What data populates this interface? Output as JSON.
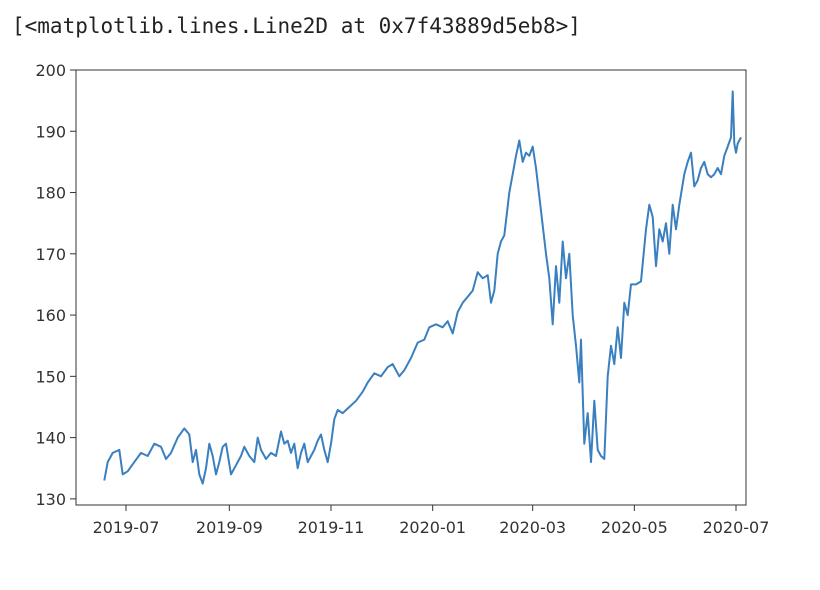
{
  "output_text": "[<matplotlib.lines.Line2D at 0x7f43889d5eb8>]",
  "chart_data": {
    "type": "line",
    "title": "",
    "xlabel": "",
    "ylabel": "",
    "xlim": [
      "2019-06-01",
      "2020-07-07"
    ],
    "ylim": [
      129,
      200
    ],
    "grid": false,
    "legend": "none",
    "line_color": "#3a7fbf",
    "x_ticks": [
      "2019-07-01",
      "2019-09-01",
      "2019-11-01",
      "2020-01-01",
      "2020-03-01",
      "2020-05-01",
      "2020-07-01"
    ],
    "x_tick_labels": [
      "2019-07",
      "2019-09",
      "2019-11",
      "2020-01",
      "2020-03",
      "2020-05",
      "2020-07"
    ],
    "y_ticks": [
      130,
      140,
      150,
      160,
      170,
      180,
      190,
      200
    ],
    "y_tick_labels": [
      "130",
      "140",
      "150",
      "160",
      "170",
      "180",
      "190",
      "200"
    ],
    "series": [
      {
        "points": [
          [
            "2019-06-18",
            133
          ],
          [
            "2019-06-20",
            136
          ],
          [
            "2019-06-23",
            137.5
          ],
          [
            "2019-06-27",
            138
          ],
          [
            "2019-06-29",
            134
          ],
          [
            "2019-07-02",
            134.5
          ],
          [
            "2019-07-06",
            136
          ],
          [
            "2019-07-10",
            137.5
          ],
          [
            "2019-07-14",
            137
          ],
          [
            "2019-07-18",
            139
          ],
          [
            "2019-07-22",
            138.5
          ],
          [
            "2019-07-25",
            136.5
          ],
          [
            "2019-07-28",
            137.5
          ],
          [
            "2019-08-01",
            140
          ],
          [
            "2019-08-05",
            141.5
          ],
          [
            "2019-08-08",
            140.5
          ],
          [
            "2019-08-10",
            136
          ],
          [
            "2019-08-12",
            138
          ],
          [
            "2019-08-14",
            134
          ],
          [
            "2019-08-16",
            132.5
          ],
          [
            "2019-08-18",
            135
          ],
          [
            "2019-08-20",
            139
          ],
          [
            "2019-08-22",
            137
          ],
          [
            "2019-08-24",
            134
          ],
          [
            "2019-08-26",
            136
          ],
          [
            "2019-08-28",
            138.5
          ],
          [
            "2019-08-30",
            139
          ],
          [
            "2019-09-02",
            134
          ],
          [
            "2019-09-05",
            135.5
          ],
          [
            "2019-09-08",
            137
          ],
          [
            "2019-09-10",
            138.5
          ],
          [
            "2019-09-13",
            137
          ],
          [
            "2019-09-16",
            136
          ],
          [
            "2019-09-18",
            140
          ],
          [
            "2019-09-20",
            138
          ],
          [
            "2019-09-23",
            136.5
          ],
          [
            "2019-09-26",
            137.5
          ],
          [
            "2019-09-29",
            137
          ],
          [
            "2019-10-02",
            141
          ],
          [
            "2019-10-04",
            139
          ],
          [
            "2019-10-06",
            139.5
          ],
          [
            "2019-10-08",
            137.5
          ],
          [
            "2019-10-10",
            139
          ],
          [
            "2019-10-12",
            135
          ],
          [
            "2019-10-14",
            137.5
          ],
          [
            "2019-10-16",
            139
          ],
          [
            "2019-10-18",
            136
          ],
          [
            "2019-10-20",
            137
          ],
          [
            "2019-10-22",
            138
          ],
          [
            "2019-10-24",
            139.5
          ],
          [
            "2019-10-26",
            140.5
          ],
          [
            "2019-10-28",
            138
          ],
          [
            "2019-10-30",
            136
          ],
          [
            "2019-11-01",
            139
          ],
          [
            "2019-11-03",
            143
          ],
          [
            "2019-11-05",
            144.5
          ],
          [
            "2019-11-08",
            144
          ],
          [
            "2019-11-12",
            145
          ],
          [
            "2019-11-16",
            146
          ],
          [
            "2019-11-20",
            147.5
          ],
          [
            "2019-11-23",
            149
          ],
          [
            "2019-11-27",
            150.5
          ],
          [
            "2019-12-01",
            150
          ],
          [
            "2019-12-05",
            151.5
          ],
          [
            "2019-12-08",
            152
          ],
          [
            "2019-12-12",
            150
          ],
          [
            "2019-12-15",
            151
          ],
          [
            "2019-12-19",
            153
          ],
          [
            "2019-12-23",
            155.5
          ],
          [
            "2019-12-27",
            156
          ],
          [
            "2019-12-30",
            158
          ],
          [
            "2020-01-03",
            158.5
          ],
          [
            "2020-01-07",
            158
          ],
          [
            "2020-01-10",
            159
          ],
          [
            "2020-01-13",
            157
          ],
          [
            "2020-01-16",
            160.5
          ],
          [
            "2020-01-19",
            162
          ],
          [
            "2020-01-22",
            163
          ],
          [
            "2020-01-25",
            164
          ],
          [
            "2020-01-28",
            167
          ],
          [
            "2020-01-31",
            166
          ],
          [
            "2020-02-03",
            166.5
          ],
          [
            "2020-02-05",
            162
          ],
          [
            "2020-02-07",
            164
          ],
          [
            "2020-02-09",
            170
          ],
          [
            "2020-02-11",
            172
          ],
          [
            "2020-02-13",
            173
          ],
          [
            "2020-02-16",
            180
          ],
          [
            "2020-02-18",
            183
          ],
          [
            "2020-02-20",
            186
          ],
          [
            "2020-02-22",
            188.5
          ],
          [
            "2020-02-24",
            185
          ],
          [
            "2020-02-26",
            186.5
          ],
          [
            "2020-02-28",
            186
          ],
          [
            "2020-03-01",
            187.5
          ],
          [
            "2020-03-03",
            184
          ],
          [
            "2020-03-06",
            177
          ],
          [
            "2020-03-09",
            170
          ],
          [
            "2020-03-11",
            166
          ],
          [
            "2020-03-13",
            158.5
          ],
          [
            "2020-03-15",
            168
          ],
          [
            "2020-03-17",
            162
          ],
          [
            "2020-03-19",
            172
          ],
          [
            "2020-03-21",
            166
          ],
          [
            "2020-03-23",
            170
          ],
          [
            "2020-03-25",
            160
          ],
          [
            "2020-03-27",
            155
          ],
          [
            "2020-03-29",
            149
          ],
          [
            "2020-03-30",
            156
          ],
          [
            "2020-04-01",
            139
          ],
          [
            "2020-04-03",
            144
          ],
          [
            "2020-04-05",
            136
          ],
          [
            "2020-04-07",
            146
          ],
          [
            "2020-04-09",
            138
          ],
          [
            "2020-04-11",
            137
          ],
          [
            "2020-04-13",
            136.5
          ],
          [
            "2020-04-15",
            150
          ],
          [
            "2020-04-17",
            155
          ],
          [
            "2020-04-19",
            152
          ],
          [
            "2020-04-21",
            158
          ],
          [
            "2020-04-23",
            153
          ],
          [
            "2020-04-25",
            162
          ],
          [
            "2020-04-27",
            160
          ],
          [
            "2020-04-29",
            165
          ],
          [
            "2020-05-02",
            165
          ],
          [
            "2020-05-05",
            165.5
          ],
          [
            "2020-05-08",
            174
          ],
          [
            "2020-05-10",
            178
          ],
          [
            "2020-05-12",
            176
          ],
          [
            "2020-05-14",
            168
          ],
          [
            "2020-05-16",
            174
          ],
          [
            "2020-05-18",
            172
          ],
          [
            "2020-05-20",
            175
          ],
          [
            "2020-05-22",
            170
          ],
          [
            "2020-05-24",
            178
          ],
          [
            "2020-05-26",
            174
          ],
          [
            "2020-05-28",
            178
          ],
          [
            "2020-05-31",
            183
          ],
          [
            "2020-06-02",
            185
          ],
          [
            "2020-06-04",
            186.5
          ],
          [
            "2020-06-06",
            181
          ],
          [
            "2020-06-08",
            182
          ],
          [
            "2020-06-10",
            184
          ],
          [
            "2020-06-12",
            185
          ],
          [
            "2020-06-14",
            183
          ],
          [
            "2020-06-16",
            182.5
          ],
          [
            "2020-06-18",
            183
          ],
          [
            "2020-06-20",
            184
          ],
          [
            "2020-06-22",
            183
          ],
          [
            "2020-06-24",
            186
          ],
          [
            "2020-06-26",
            187.5
          ],
          [
            "2020-06-28",
            189
          ],
          [
            "2020-06-29",
            196.5
          ],
          [
            "2020-06-30",
            188
          ],
          [
            "2020-07-01",
            186.5
          ],
          [
            "2020-07-02",
            188
          ],
          [
            "2020-07-04",
            189
          ]
        ]
      }
    ]
  }
}
